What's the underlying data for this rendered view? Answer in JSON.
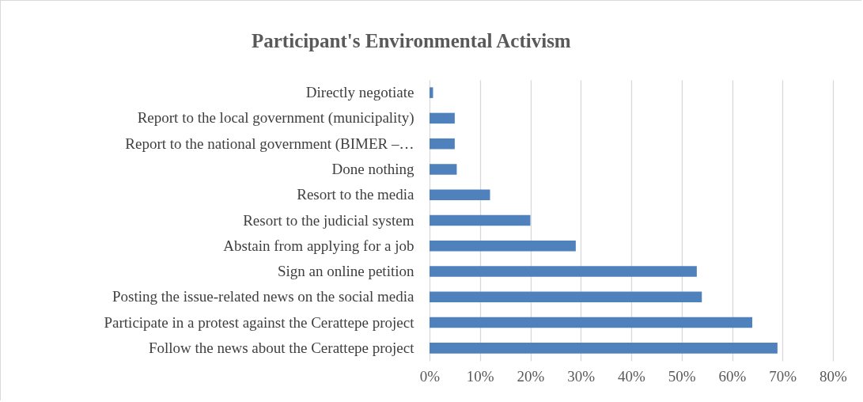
{
  "chart_data": {
    "type": "bar",
    "orientation": "horizontal",
    "title": "Participant's Environmental Activism",
    "categories": [
      "Directly negotiate",
      "Report to the local government (municipality)",
      "Report to the national government (BIMER –…",
      "Done nothing",
      "Resort to the media",
      "Resort to the judicial system",
      "Abstain from applying for a job",
      "Sign an online petition",
      "Posting the issue-related news on the social media",
      "Participate in a protest against the Cerattepe project",
      "Follow the news about the Cerattepe project"
    ],
    "values": [
      0.7,
      5,
      5,
      5.4,
      12,
      20,
      29,
      53,
      54,
      64,
      69
    ],
    "color": "#4f81bd",
    "xlim": [
      0,
      80
    ],
    "xticks": [
      {
        "value": 0,
        "label": "0%"
      },
      {
        "value": 10,
        "label": "10%"
      },
      {
        "value": 20,
        "label": "20%"
      },
      {
        "value": 30,
        "label": "30%"
      },
      {
        "value": 40,
        "label": "40%"
      },
      {
        "value": 50,
        "label": "50%"
      },
      {
        "value": 60,
        "label": "60%"
      },
      {
        "value": 70,
        "label": "70%"
      },
      {
        "value": 80,
        "label": "80%"
      }
    ],
    "grid": "x"
  }
}
